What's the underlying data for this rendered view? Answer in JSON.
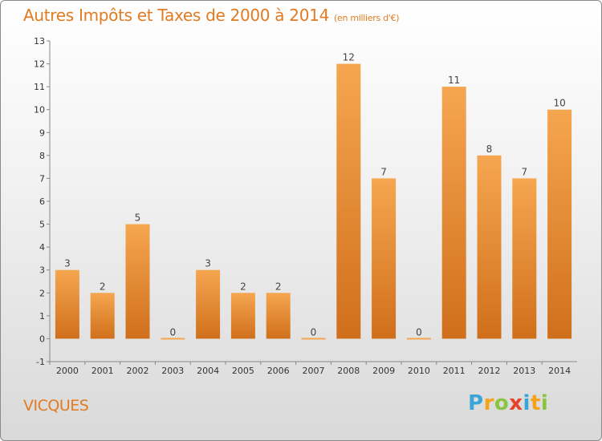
{
  "header": {
    "title": "Autres Impôts et Taxes de 2000 à 2014",
    "unit": "(en milliers d'€)"
  },
  "footer": {
    "place": "VICQUES",
    "logo": [
      "P",
      "r",
      "o",
      "x",
      "i",
      "t",
      "i"
    ]
  },
  "colors": {
    "title": "#e07b22",
    "bar_light": "#f6a650",
    "bar_dark": "#d06f1b",
    "logo": [
      "#3aa6d8",
      "#f5a31a",
      "#8ac540",
      "#e8402b",
      "#3aa6d8",
      "#f5a31a",
      "#8ac540"
    ]
  },
  "chart_data": {
    "type": "bar",
    "title": "Autres Impôts et Taxes de 2000 à 2014",
    "subtitle": "(en milliers d'€)",
    "categories": [
      "2000",
      "2001",
      "2002",
      "2003",
      "2004",
      "2005",
      "2006",
      "2007",
      "2008",
      "2009",
      "2010",
      "2011",
      "2012",
      "2013",
      "2014"
    ],
    "values": [
      3,
      2,
      5,
      0,
      3,
      2,
      2,
      0,
      12,
      7,
      0,
      11,
      8,
      7,
      10
    ],
    "data_labels": [
      "3",
      "2",
      "5",
      "0",
      "3",
      "2",
      "2",
      "0",
      "12",
      "7",
      "0",
      "11",
      "8",
      "7",
      "10"
    ],
    "ylim": [
      -1,
      13
    ],
    "yticks": [
      "-1",
      "0",
      "1",
      "2",
      "3",
      "4",
      "5",
      "6",
      "7",
      "8",
      "9",
      "10",
      "11",
      "12",
      "13"
    ],
    "grid": false,
    "legend": "none"
  }
}
